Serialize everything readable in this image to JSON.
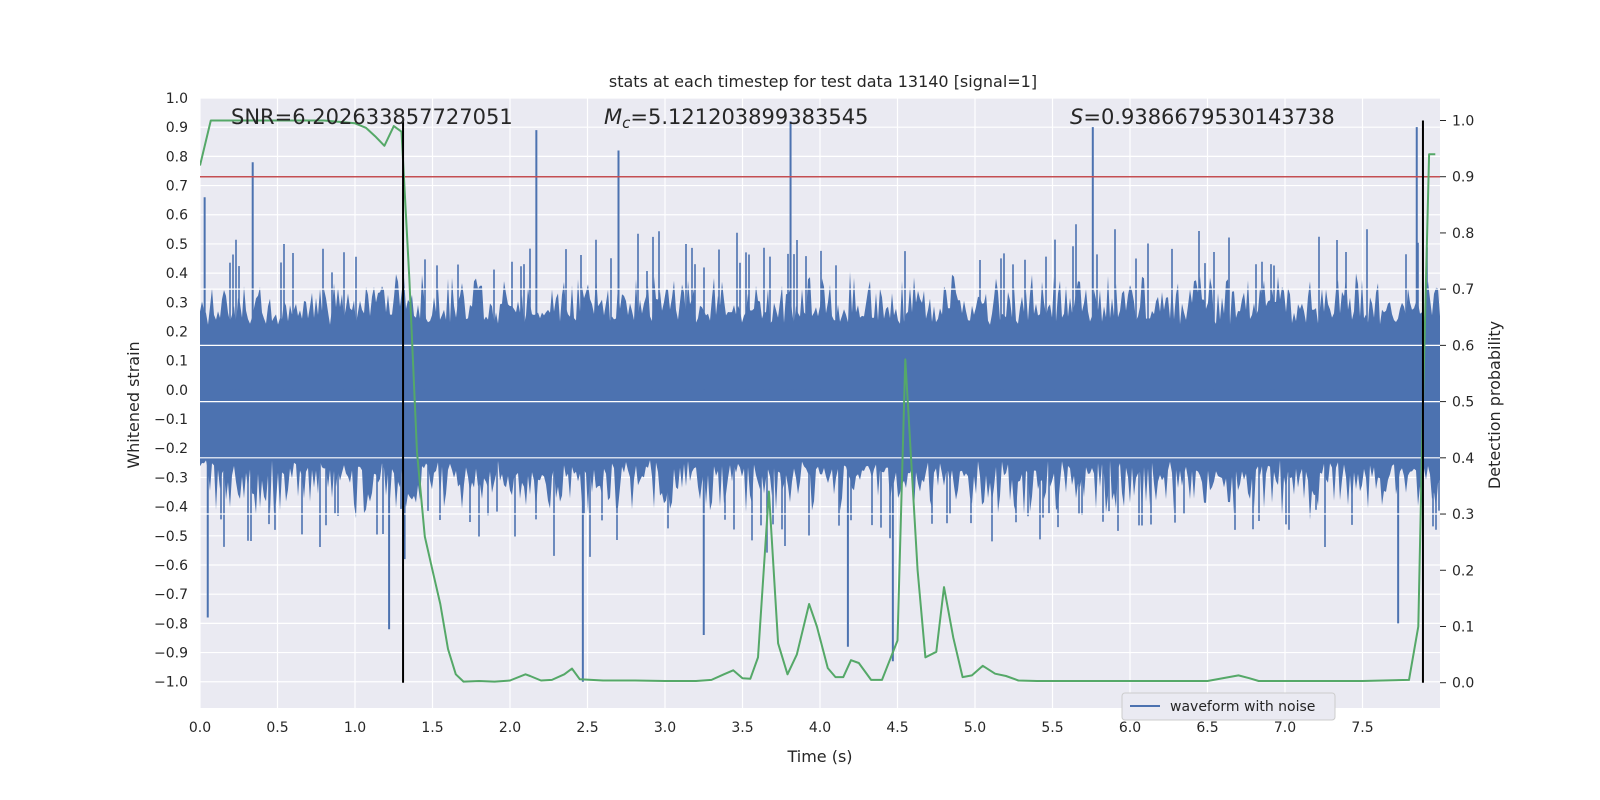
{
  "chart_data": {
    "type": "line",
    "title": "stats at each timestep for test data 13140 [signal=1]",
    "xlabel": "Time (s)",
    "ylabel": "Whitened strain",
    "y2label": "Detection probability",
    "xlim": [
      0.0,
      8.0
    ],
    "ylim": [
      -1.09,
      1.0
    ],
    "y2lim": [
      -0.045,
      1.04
    ],
    "x_ticks": [
      "0.0",
      "0.5",
      "1.0",
      "1.5",
      "2.0",
      "2.5",
      "3.0",
      "3.5",
      "4.0",
      "4.5",
      "5.0",
      "5.5",
      "6.0",
      "6.5",
      "7.0",
      "7.5"
    ],
    "y_ticks": [
      "1.0",
      "0.9",
      "0.8",
      "0.7",
      "0.6",
      "0.5",
      "0.4",
      "0.3",
      "0.2",
      "0.1",
      "0.0",
      "−0.1",
      "−0.2",
      "−0.3",
      "−0.4",
      "−0.5",
      "−0.6",
      "−0.7",
      "−0.8",
      "−0.9",
      "−1.0"
    ],
    "y2_ticks": [
      "1.0",
      "0.9",
      "0.8",
      "0.7",
      "0.6",
      "0.5",
      "0.4",
      "0.3",
      "0.2",
      "0.1",
      "0.0"
    ],
    "annotations": {
      "snr": "SNR=6.202633857727051",
      "mc_symbol": "M",
      "mc_sub": "c",
      "mc_value": "=5.121203899383545",
      "s_symbol": "S",
      "s_value": "=0.9386679530143738"
    },
    "legend": {
      "label": "waveform with noise",
      "placement": "lower-right"
    },
    "colors": {
      "waveform": "#4c72b0",
      "probability": "#55a868",
      "threshold": "#c44e52",
      "markers": "#000000",
      "axes_bg": "#eaeaf2",
      "grid": "#ffffff"
    },
    "threshold_probability": 0.9,
    "vertical_markers_s": [
      1.31,
      7.89
    ],
    "waveform": {
      "name": "waveform with noise",
      "typical_envelope": 0.4,
      "peaks": [
        {
          "x": 0.03,
          "y": 0.66
        },
        {
          "x": 0.05,
          "y": -0.78
        },
        {
          "x": 0.34,
          "y": 0.78
        },
        {
          "x": 1.22,
          "y": -0.82
        },
        {
          "x": 1.32,
          "y": -0.58
        },
        {
          "x": 2.17,
          "y": 0.89
        },
        {
          "x": 2.47,
          "y": -1.0
        },
        {
          "x": 2.7,
          "y": 0.82
        },
        {
          "x": 3.25,
          "y": -0.84
        },
        {
          "x": 3.81,
          "y": 0.92
        },
        {
          "x": 4.18,
          "y": -0.88
        },
        {
          "x": 4.47,
          "y": -0.93
        },
        {
          "x": 5.76,
          "y": 0.9
        },
        {
          "x": 7.73,
          "y": -0.8
        },
        {
          "x": 7.85,
          "y": 0.9
        }
      ]
    },
    "probability": {
      "x": [
        0.0,
        0.07,
        0.2,
        0.4,
        0.6,
        0.8,
        1.0,
        1.07,
        1.13,
        1.19,
        1.25,
        1.3,
        1.35,
        1.4,
        1.45,
        1.5,
        1.55,
        1.6,
        1.65,
        1.7,
        1.8,
        1.9,
        2.0,
        2.1,
        2.13,
        2.2,
        2.27,
        2.35,
        2.4,
        2.45,
        2.6,
        2.8,
        3.0,
        3.2,
        3.3,
        3.38,
        3.44,
        3.5,
        3.55,
        3.6,
        3.67,
        3.73,
        3.79,
        3.85,
        3.93,
        3.98,
        4.05,
        4.1,
        4.15,
        4.2,
        4.25,
        4.33,
        4.4,
        4.5,
        4.55,
        4.63,
        4.68,
        4.75,
        4.8,
        4.86,
        4.92,
        4.98,
        5.05,
        5.13,
        5.2,
        5.28,
        5.4,
        5.6,
        5.8,
        6.0,
        6.2,
        6.5,
        6.7,
        6.77,
        6.83,
        6.9,
        7.2,
        7.5,
        7.8,
        7.86,
        7.89,
        7.93,
        7.97
      ],
      "y": [
        0.92,
        1.0,
        1.0,
        1.0,
        1.0,
        1.0,
        0.995,
        0.987,
        0.972,
        0.955,
        0.99,
        0.98,
        0.72,
        0.41,
        0.26,
        0.2,
        0.14,
        0.06,
        0.015,
        0.002,
        0.003,
        0.002,
        0.004,
        0.015,
        0.012,
        0.004,
        0.005,
        0.015,
        0.025,
        0.006,
        0.004,
        0.004,
        0.003,
        0.003,
        0.005,
        0.015,
        0.022,
        0.008,
        0.007,
        0.045,
        0.34,
        0.07,
        0.015,
        0.05,
        0.14,
        0.1,
        0.026,
        0.01,
        0.01,
        0.04,
        0.035,
        0.005,
        0.005,
        0.075,
        0.575,
        0.2,
        0.045,
        0.055,
        0.17,
        0.08,
        0.01,
        0.013,
        0.03,
        0.016,
        0.012,
        0.004,
        0.003,
        0.003,
        0.003,
        0.003,
        0.003,
        0.003,
        0.013,
        0.008,
        0.003,
        0.003,
        0.003,
        0.003,
        0.005,
        0.1,
        0.5,
        0.94,
        0.94
      ]
    }
  }
}
